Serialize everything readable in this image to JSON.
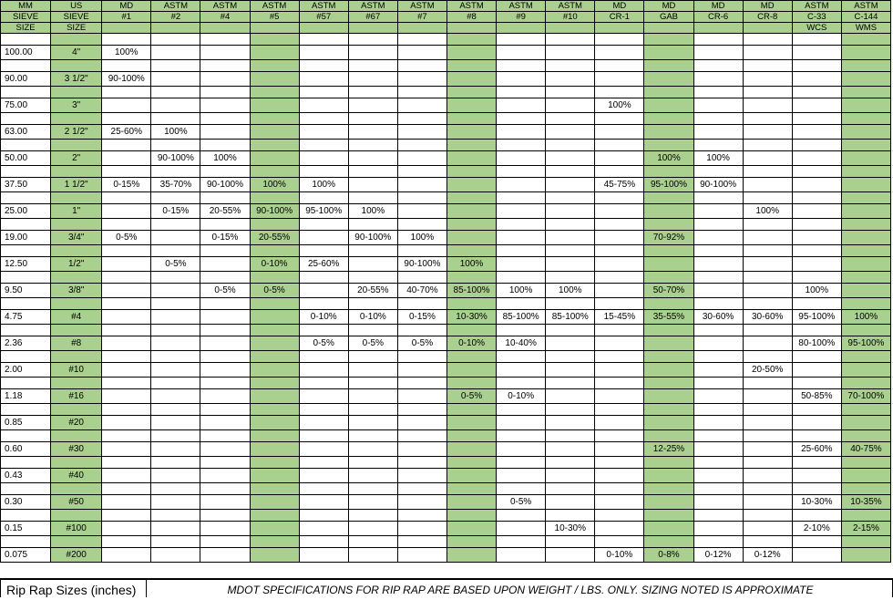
{
  "columns": [
    {
      "h1": "MM",
      "h2": "SIEVE",
      "h3": "SIZE"
    },
    {
      "h1": "US",
      "h2": "SIEVE",
      "h3": "SIZE"
    },
    {
      "h1": "MD",
      "h2": "#1",
      "h3": ""
    },
    {
      "h1": "ASTM",
      "h2": "#2",
      "h3": ""
    },
    {
      "h1": "ASTM",
      "h2": "#4",
      "h3": ""
    },
    {
      "h1": "ASTM",
      "h2": "#5",
      "h3": ""
    },
    {
      "h1": "ASTM",
      "h2": "#57",
      "h3": ""
    },
    {
      "h1": "ASTM",
      "h2": "#67",
      "h3": ""
    },
    {
      "h1": "ASTM",
      "h2": "#7",
      "h3": ""
    },
    {
      "h1": "ASTM",
      "h2": "#8",
      "h3": ""
    },
    {
      "h1": "ASTM",
      "h2": "#9",
      "h3": ""
    },
    {
      "h1": "ASTM",
      "h2": "#10",
      "h3": ""
    },
    {
      "h1": "MD",
      "h2": "CR-1",
      "h3": ""
    },
    {
      "h1": "MD",
      "h2": "GAB",
      "h3": ""
    },
    {
      "h1": "MD",
      "h2": "CR-6",
      "h3": ""
    },
    {
      "h1": "MD",
      "h2": "CR-8",
      "h3": ""
    },
    {
      "h1": "ASTM",
      "h2": "C-33",
      "h3": "WCS"
    },
    {
      "h1": "ASTM",
      "h2": "C-144",
      "h3": "WMS"
    }
  ],
  "green_columns": [
    1,
    5,
    9,
    13,
    17
  ],
  "rows": [
    [
      "100.00",
      "4\"",
      "100%",
      "",
      "",
      "",
      "",
      "",
      "",
      "",
      "",
      "",
      "",
      "",
      "",
      "",
      "",
      ""
    ],
    [
      "90.00",
      "3 1/2\"",
      "90-100%",
      "",
      "",
      "",
      "",
      "",
      "",
      "",
      "",
      "",
      "",
      "",
      "",
      "",
      "",
      ""
    ],
    [
      "75.00",
      "3\"",
      "",
      "",
      "",
      "",
      "",
      "",
      "",
      "",
      "",
      "",
      "100%",
      "",
      "",
      "",
      "",
      ""
    ],
    [
      "63.00",
      "2 1/2\"",
      "25-60%",
      "100%",
      "",
      "",
      "",
      "",
      "",
      "",
      "",
      "",
      "",
      "",
      "",
      "",
      "",
      ""
    ],
    [
      "50.00",
      "2\"",
      "",
      "90-100%",
      "100%",
      "",
      "",
      "",
      "",
      "",
      "",
      "",
      "",
      "100%",
      "100%",
      "",
      "",
      ""
    ],
    [
      "37.50",
      "1 1/2\"",
      "0-15%",
      "35-70%",
      "90-100%",
      "100%",
      "100%",
      "",
      "",
      "",
      "",
      "",
      "45-75%",
      "95-100%",
      "90-100%",
      "",
      "",
      ""
    ],
    [
      "25.00",
      "1\"",
      "",
      "0-15%",
      "20-55%",
      "90-100%",
      "95-100%",
      "100%",
      "",
      "",
      "",
      "",
      "",
      "",
      "",
      "100%",
      "",
      ""
    ],
    [
      "19.00",
      "3/4\"",
      "0-5%",
      "",
      "0-15%",
      "20-55%",
      "",
      "90-100%",
      "100%",
      "",
      "",
      "",
      "",
      "70-92%",
      "",
      "",
      "",
      ""
    ],
    [
      "12.50",
      "1/2\"",
      "",
      "0-5%",
      "",
      "0-10%",
      "25-60%",
      "",
      "90-100%",
      "100%",
      "",
      "",
      "",
      "",
      "",
      "",
      "",
      ""
    ],
    [
      "9.50",
      "3/8\"",
      "",
      "",
      "0-5%",
      "0-5%",
      "",
      "20-55%",
      "40-70%",
      "85-100%",
      "100%",
      "100%",
      "",
      "50-70%",
      "",
      "",
      "100%",
      ""
    ],
    [
      "4.75",
      "#4",
      "",
      "",
      "",
      "",
      "0-10%",
      "0-10%",
      "0-15%",
      "10-30%",
      "85-100%",
      "85-100%",
      "15-45%",
      "35-55%",
      "30-60%",
      "30-60%",
      "95-100%",
      "100%"
    ],
    [
      "2.36",
      "#8",
      "",
      "",
      "",
      "",
      "0-5%",
      "0-5%",
      "0-5%",
      "0-10%",
      "10-40%",
      "",
      "",
      "",
      "",
      "",
      "80-100%",
      "95-100%"
    ],
    [
      "2.00",
      "#10",
      "",
      "",
      "",
      "",
      "",
      "",
      "",
      "",
      "",
      "",
      "",
      "",
      "",
      "20-50%",
      "",
      ""
    ],
    [
      "1.18",
      "#16",
      "",
      "",
      "",
      "",
      "",
      "",
      "",
      "0-5%",
      "0-10%",
      "",
      "",
      "",
      "",
      "",
      "50-85%",
      "70-100%"
    ],
    [
      "0.85",
      "#20",
      "",
      "",
      "",
      "",
      "",
      "",
      "",
      "",
      "",
      "",
      "",
      "",
      "",
      "",
      "",
      ""
    ],
    [
      "0.60",
      "#30",
      "",
      "",
      "",
      "",
      "",
      "",
      "",
      "",
      "",
      "",
      "",
      "12-25%",
      "",
      "",
      "25-60%",
      "40-75%"
    ],
    [
      "0.43",
      "#40",
      "",
      "",
      "",
      "",
      "",
      "",
      "",
      "",
      "",
      "",
      "",
      "",
      "",
      "",
      "",
      ""
    ],
    [
      "0.30",
      "#50",
      "",
      "",
      "",
      "",
      "",
      "",
      "",
      "",
      "0-5%",
      "",
      "",
      "",
      "",
      "",
      "10-30%",
      "10-35%"
    ],
    [
      "0.15",
      "#100",
      "",
      "",
      "",
      "",
      "",
      "",
      "",
      "",
      "",
      "10-30%",
      "",
      "",
      "",
      "",
      "2-10%",
      "2-15%"
    ],
    [
      "0.075",
      "#200",
      "",
      "",
      "",
      "",
      "",
      "",
      "",
      "",
      "",
      "",
      "0-10%",
      "0-8%",
      "0-12%",
      "0-12%",
      "",
      ""
    ]
  ],
  "footer": {
    "left_label": "Rip Rap Sizes (inches)",
    "note": "MDOT SPECIFICATIONS FOR RIP RAP ARE BASED UPON WEIGHT / LBS. ONLY.  SIZING NOTED IS APPROXIMATE"
  }
}
